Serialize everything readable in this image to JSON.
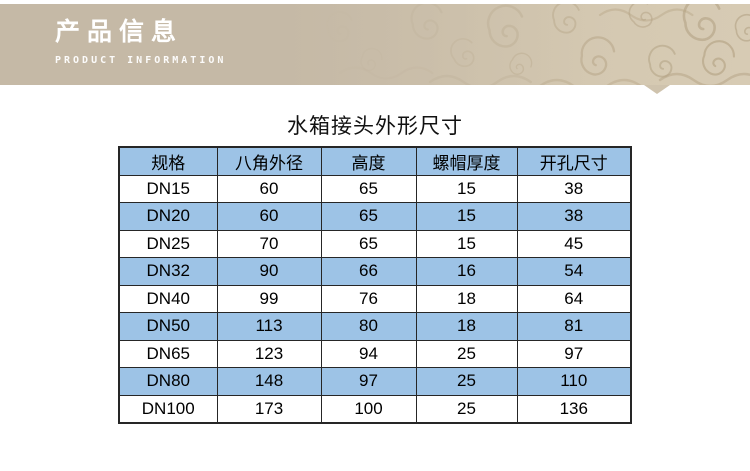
{
  "banner": {
    "title": "产品信息",
    "subtitle": "PRODUCT INFORMATION",
    "colors": {
      "bg_left": "#c5b9a6",
      "bg_right": "#d7cbb4",
      "pattern_stroke": "#b3a283",
      "text": "#ffffff"
    }
  },
  "section": {
    "table_title": "水箱接头外形尺寸"
  },
  "table": {
    "headers": [
      "规格",
      "八角外径",
      "高度",
      "螺帽厚度",
      "开孔尺寸"
    ],
    "rows": [
      [
        "DN15",
        "60",
        "65",
        "15",
        "38"
      ],
      [
        "DN20",
        "60",
        "65",
        "15",
        "38"
      ],
      [
        "DN25",
        "70",
        "65",
        "15",
        "45"
      ],
      [
        "DN32",
        "90",
        "66",
        "16",
        "54"
      ],
      [
        "DN40",
        "99",
        "76",
        "18",
        "64"
      ],
      [
        "DN50",
        "113",
        "80",
        "18",
        "81"
      ],
      [
        "DN65",
        "123",
        "94",
        "25",
        "97"
      ],
      [
        "DN80",
        "148",
        "97",
        "25",
        "110"
      ],
      [
        "DN100",
        "173",
        "100",
        "25",
        "136"
      ]
    ],
    "colors": {
      "header_bg": "#9dc3e6",
      "zebra_bg": "#9dc3e6",
      "row_bg": "#ffffff",
      "border": "#262626",
      "text": "#000000"
    }
  }
}
